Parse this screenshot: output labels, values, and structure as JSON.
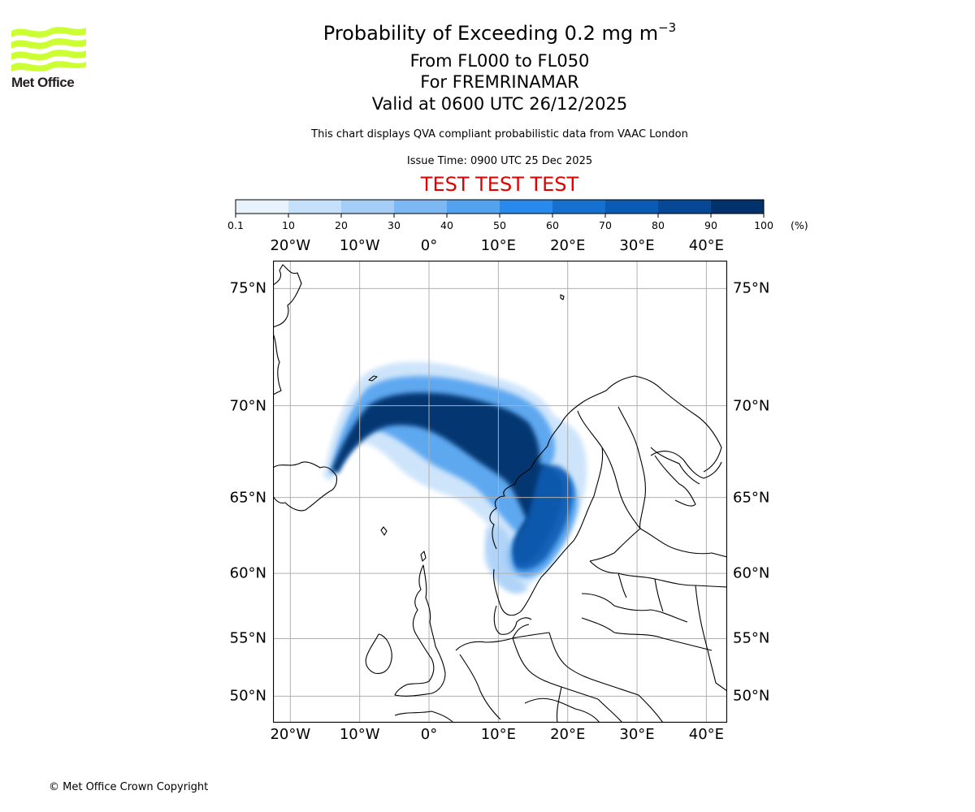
{
  "logo": {
    "text": "Met Office",
    "color": "#ccff33"
  },
  "title": {
    "main": "Probability of Exceeding 0.2 mg m",
    "main_superscript": "−3",
    "range": "From FL000 to FL050",
    "region": "For FREMRINAMAR",
    "valid": "Valid at 0600 UTC 26/12/2025"
  },
  "subtitle": "This chart displays QVA compliant probabilistic data from VAAC London",
  "issue_time": "Issue Time: 0900 UTC 25 Dec 2025",
  "test_banner": {
    "text": "TEST TEST TEST",
    "color": "#e00000"
  },
  "colorbar": {
    "ticks": [
      "0.1",
      "10",
      "20",
      "30",
      "40",
      "50",
      "60",
      "70",
      "80",
      "90",
      "100"
    ],
    "unit": "(%)",
    "colors": [
      "#e8f2fd",
      "#c5e0fa",
      "#a4cdf7",
      "#7bb8f4",
      "#52a2f0",
      "#2989ec",
      "#1570d0",
      "#0a5bb4",
      "#064896",
      "#02326c"
    ]
  },
  "map": {
    "lon_labels": [
      "20°W",
      "10°W",
      "0°",
      "10°E",
      "20°E",
      "30°E",
      "40°E"
    ],
    "lat_labels": [
      "75°N",
      "70°N",
      "65°N",
      "60°N",
      "55°N",
      "50°N"
    ],
    "extent": {
      "lon_min": -22.5,
      "lon_max": 43,
      "lat_min": 47.5,
      "lat_max": 76
    },
    "plume_description": "Ash probability plume from Iceland across Norwegian Sea into Norway and Sweden"
  },
  "copyright": "© Met Office Crown Copyright"
}
